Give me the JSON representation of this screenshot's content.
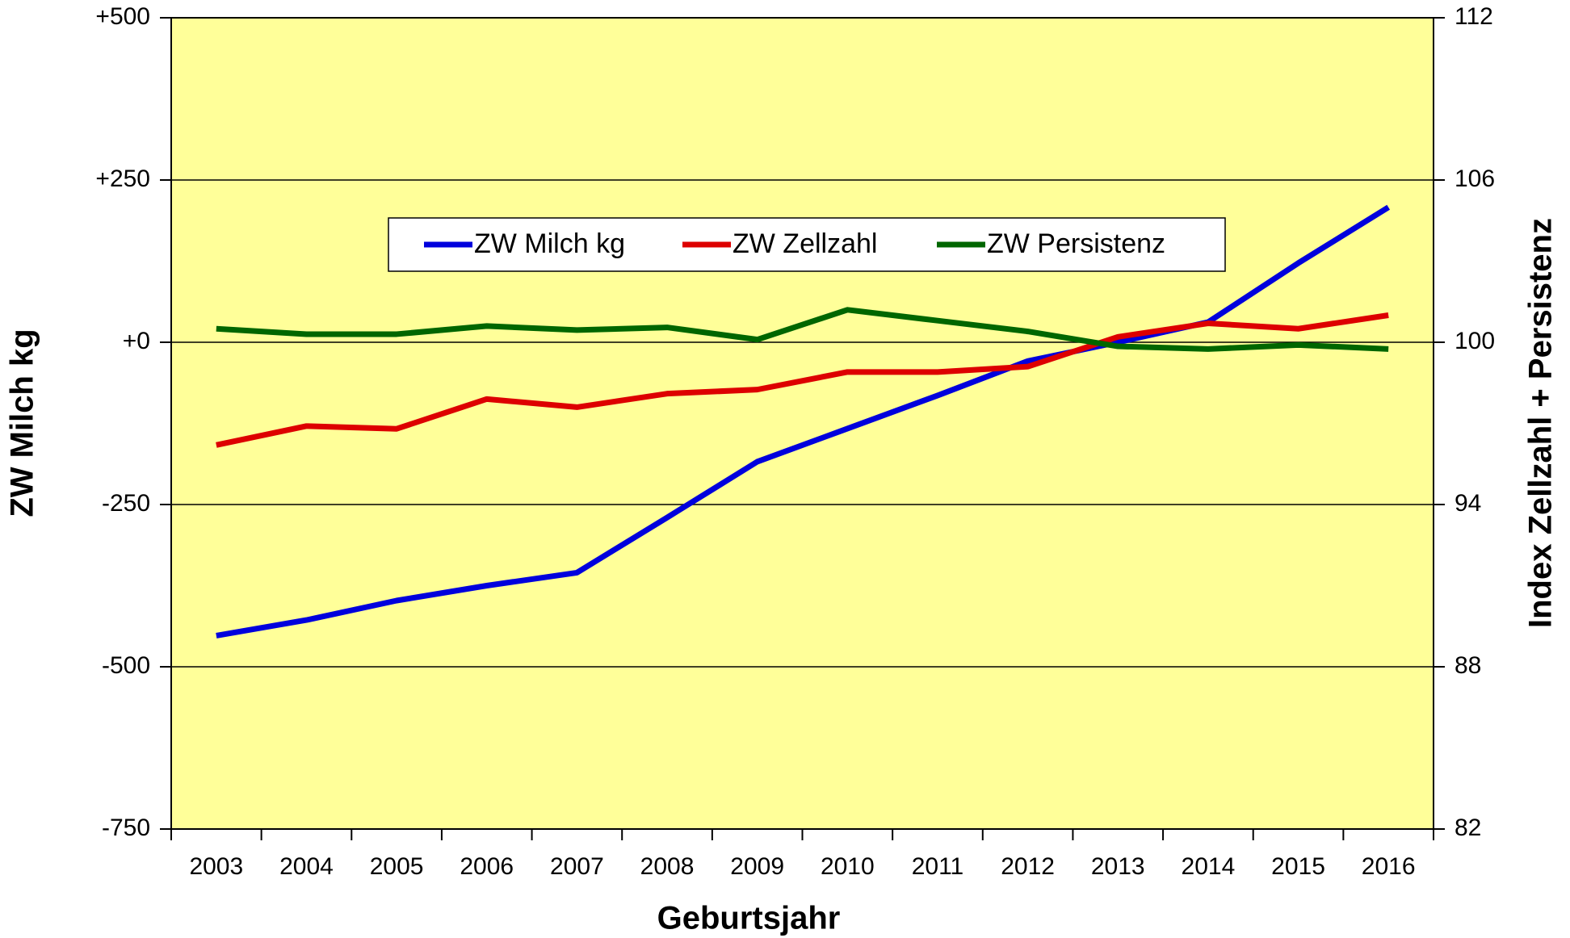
{
  "chart_data": {
    "type": "line",
    "x_label": "Geburtsjahr",
    "y_label": "ZW Milch kg",
    "y2_label": "Index Zellzahl + Persistenz",
    "categories": [
      "2003",
      "2004",
      "2005",
      "2006",
      "2007",
      "2008",
      "2009",
      "2010",
      "2011",
      "2012",
      "2013",
      "2014",
      "2015",
      "2016"
    ],
    "series": [
      {
        "name": "ZW Milch kg",
        "color": "#0000dd",
        "values": [
          -452,
          -428,
          -398,
          -375,
          -355,
          -270,
          -184,
          -133,
          -82,
          -29,
          0,
          31,
          122,
          208
        ]
      },
      {
        "name": "ZW Zellzahl",
        "color": "#dd0000",
        "axis": "y2",
        "values": [
          96.2,
          96.9,
          96.8,
          97.9,
          97.6,
          98.1,
          98.25,
          98.9,
          98.9,
          99.1,
          100.2,
          100.7,
          100.5,
          101.0
        ]
      },
      {
        "name": "ZW Persistenz",
        "color": "#006600",
        "axis": "y2",
        "values": [
          100.5,
          100.3,
          100.3,
          100.6,
          100.45,
          100.55,
          100.1,
          101.2,
          100.8,
          100.4,
          99.85,
          99.75,
          99.9,
          99.75
        ]
      }
    ],
    "ylim": [
      -750,
      500
    ],
    "yticks": [
      -750,
      -500,
      -250,
      {
        "value": 0,
        "label": "+0"
      },
      {
        "value": 250,
        "label": "+250"
      },
      {
        "value": 500,
        "label": "+500"
      }
    ],
    "y2lim": [
      82,
      112
    ],
    "y2ticks": [
      82,
      88,
      94,
      100,
      106,
      112
    ],
    "grid": true,
    "plot_background": "#ffff99"
  }
}
